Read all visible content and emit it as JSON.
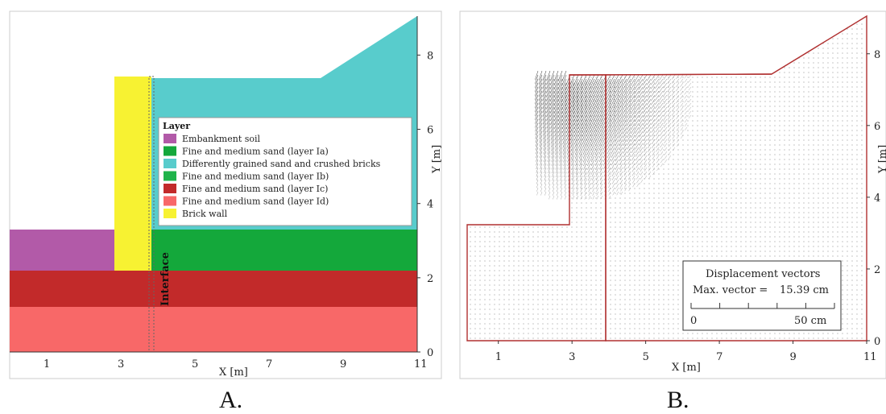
{
  "panelA": {
    "label": "A.",
    "x_axis_label": "X [m]",
    "y_axis_label": "Y [m]",
    "x_ticks": [
      "1",
      "3",
      "5",
      "7",
      "9",
      "11"
    ],
    "y_ticks": [
      "0",
      "2",
      "4",
      "6",
      "8"
    ],
    "interface_label": "Interface",
    "legend": {
      "title": "Layer",
      "items": [
        {
          "label": "Embankment soil",
          "color": "#b25aa8"
        },
        {
          "label": "Fine and medium sand (layer Ia)",
          "color": "#14a83b"
        },
        {
          "label": "Differently grained sand and crushed bricks",
          "color": "#58cccc"
        },
        {
          "label": "Fine and medium sand (layer Ib)",
          "color": "#1fb34a"
        },
        {
          "label": "Fine and medium sand (layer Ic)",
          "color": "#c22a2a"
        },
        {
          "label": "Fine and medium sand (layer Id)",
          "color": "#f86868"
        },
        {
          "label": "Brick wall",
          "color": "#f7f232"
        }
      ]
    }
  },
  "panelB": {
    "label": "B.",
    "x_axis_label": "X [m]",
    "y_axis_label": "Y [m]",
    "x_ticks": [
      "1",
      "3",
      "5",
      "7",
      "9",
      "11"
    ],
    "y_ticks": [
      "0",
      "2",
      "4",
      "6",
      "8"
    ],
    "vector_box": {
      "title": "Displacement vectors",
      "max_label": "Max. vector =",
      "max_value": "15.39 cm",
      "scale_start": "0",
      "scale_end": "50 cm"
    },
    "outline_color": "#b03030"
  }
}
